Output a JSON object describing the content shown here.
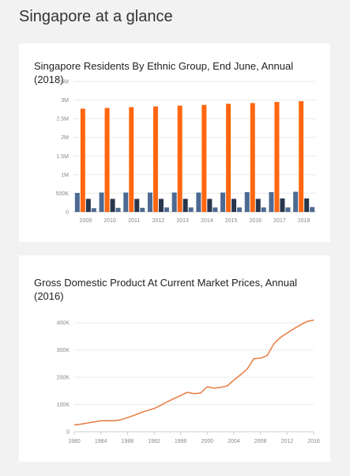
{
  "page": {
    "title": "Singapore at a glance"
  },
  "charts": [
    {
      "title": "Singapore Residents By Ethnic Group, End June, Annual (2018)"
    },
    {
      "title": "Gross Domestic Product At Current Market Prices, Annual (2016)"
    }
  ],
  "colors": {
    "orange": "#ff6610",
    "navy": "#27364d",
    "steel": "#4d6a92",
    "line": "#e8824a",
    "grid": "#e9e9e9",
    "axis": "#cccccc"
  },
  "chart_data": [
    {
      "type": "bar",
      "title": "Singapore Residents By Ethnic Group, End June, Annual (2018)",
      "categories": [
        "2009",
        "2010",
        "2011",
        "2012",
        "2013",
        "2014",
        "2015",
        "2016",
        "2017",
        "2018"
      ],
      "series": [
        {
          "values": [
            510000,
            520000,
            520000,
            520000,
            520000,
            520000,
            520000,
            530000,
            530000,
            540000
          ]
        },
        {
          "values": [
            2770000,
            2790000,
            2810000,
            2830000,
            2850000,
            2870000,
            2900000,
            2920000,
            2950000,
            2970000
          ]
        },
        {
          "values": [
            350000,
            350000,
            350000,
            350000,
            350000,
            350000,
            350000,
            350000,
            360000,
            360000
          ]
        },
        {
          "values": [
            100000,
            110000,
            110000,
            120000,
            120000,
            120000,
            120000,
            120000,
            120000,
            130000
          ]
        }
      ],
      "yticks": [
        "0",
        "500K",
        "1M",
        "1.5M",
        "2M",
        "2.5M",
        "3M",
        "3.5M"
      ],
      "ylim": [
        0,
        3500000
      ],
      "grid": true
    },
    {
      "type": "line",
      "title": "Gross Domestic Product At Current Market Prices, Annual (2016)",
      "x": [
        1980,
        1981,
        1982,
        1983,
        1984,
        1985,
        1986,
        1987,
        1988,
        1989,
        1990,
        1991,
        1992,
        1993,
        1994,
        1995,
        1996,
        1997,
        1998,
        1999,
        2000,
        2001,
        2002,
        2003,
        2004,
        2005,
        2006,
        2007,
        2008,
        2009,
        2010,
        2011,
        2012,
        2013,
        2014,
        2015,
        2016
      ],
      "y": [
        25000,
        28000,
        32000,
        36000,
        40000,
        41000,
        40000,
        44000,
        52000,
        60000,
        70000,
        78000,
        85000,
        97000,
        110000,
        122000,
        133000,
        145000,
        140000,
        142000,
        165000,
        160000,
        163000,
        168000,
        190000,
        209000,
        230000,
        268000,
        270000,
        280000,
        322000,
        346000,
        362000,
        378000,
        392000,
        405000,
        410000
      ],
      "xticks": [
        "1980",
        "1984",
        "1988",
        "1992",
        "1996",
        "2000",
        "2004",
        "2008",
        "2012",
        "2016"
      ],
      "yticks": [
        "0",
        "100K",
        "200K",
        "300K",
        "400K"
      ],
      "xlim": [
        1980,
        2016
      ],
      "ylim": [
        0,
        450000
      ],
      "grid": true
    }
  ]
}
